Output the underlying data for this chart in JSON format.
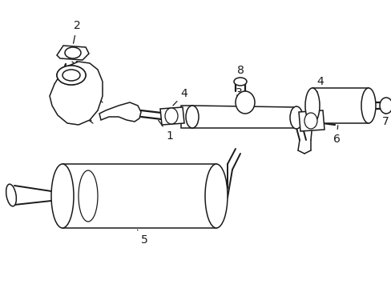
{
  "bg_color": "#ffffff",
  "line_color": "#1a1a1a",
  "line_width": 1.1,
  "label_fontsize": 10,
  "fig_width": 4.89,
  "fig_height": 3.6,
  "dpi": 100,
  "xlim": [
    0,
    489
  ],
  "ylim": [
    0,
    360
  ]
}
